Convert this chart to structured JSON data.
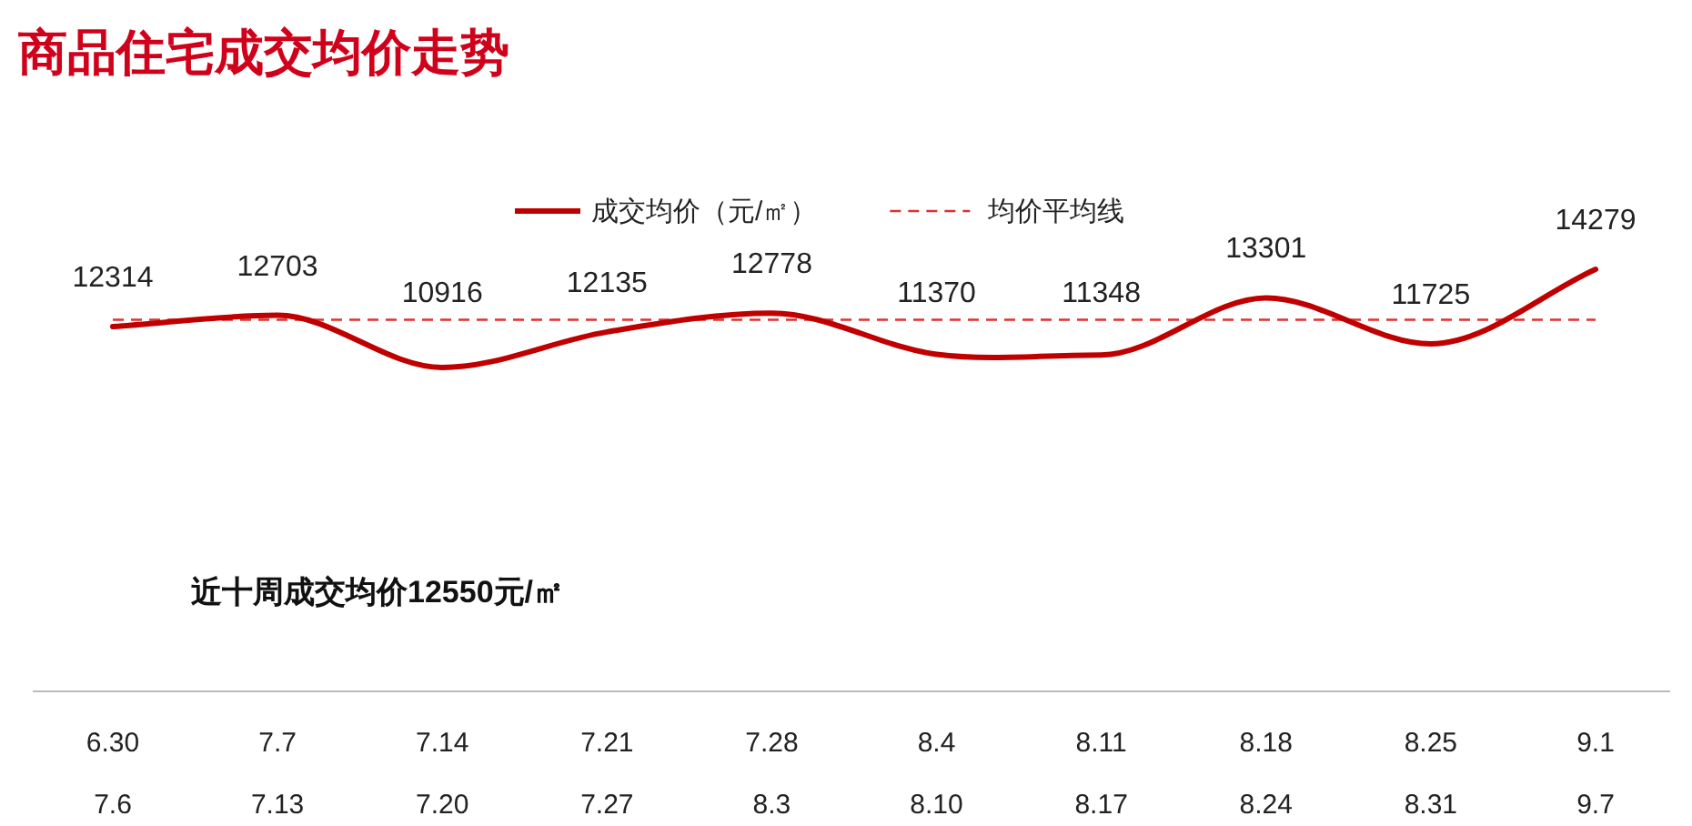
{
  "chart_data": {
    "type": "line",
    "title": "商品住宅成交均价走势",
    "categories": [
      "6.30\n7.6",
      "7.7\n7.13",
      "7.14\n7.20",
      "7.21\n7.27",
      "7.28\n8.3",
      "8.4\n8.10",
      "8.11\n8.17",
      "8.18\n8.24",
      "8.25\n8.31",
      "9.1\n9.7"
    ],
    "series": [
      {
        "name": "成交均价（元/㎡）",
        "color": "#c00000",
        "values": [
          12314,
          12703,
          10916,
          12135,
          12778,
          11370,
          11348,
          13301,
          11725,
          14279
        ]
      }
    ],
    "ref_lines": [
      {
        "axis": "y",
        "value": 12550,
        "label": "均价平均线",
        "color": "#e03030",
        "line_style": "dashed"
      }
    ],
    "annotations": [
      "近十周成交均价12550元/㎡"
    ],
    "data_labels": true,
    "legend": "top",
    "marker": "none",
    "line_style": "solid"
  }
}
